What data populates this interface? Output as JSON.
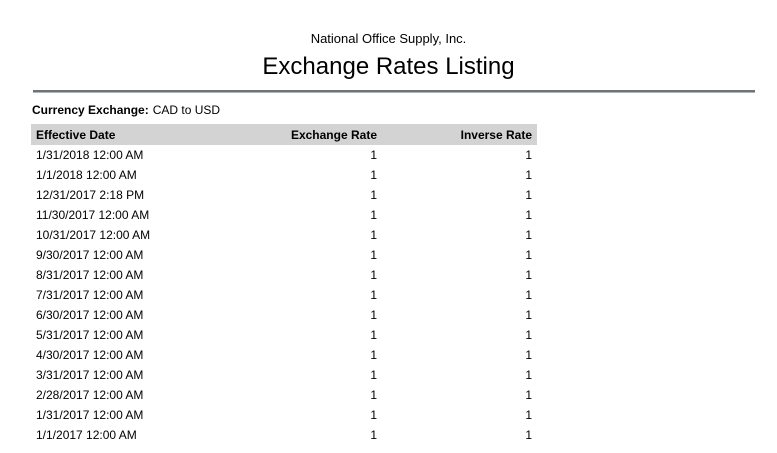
{
  "report": {
    "company": "National Office Supply, Inc.",
    "title": "Exchange Rates Listing",
    "filter_label": "Currency Exchange:",
    "filter_value": "CAD to USD"
  },
  "table": {
    "columns": [
      "Effective Date",
      "Exchange Rate",
      "Inverse Rate"
    ],
    "rows": [
      {
        "effective_date": "1/31/2018 12:00 AM",
        "exchange_rate": "1",
        "inverse_rate": "1"
      },
      {
        "effective_date": "1/1/2018 12:00 AM",
        "exchange_rate": "1",
        "inverse_rate": "1"
      },
      {
        "effective_date": "12/31/2017 2:18 PM",
        "exchange_rate": "1",
        "inverse_rate": "1"
      },
      {
        "effective_date": "11/30/2017 12:00 AM",
        "exchange_rate": "1",
        "inverse_rate": "1"
      },
      {
        "effective_date": "10/31/2017 12:00 AM",
        "exchange_rate": "1",
        "inverse_rate": "1"
      },
      {
        "effective_date": "9/30/2017 12:00 AM",
        "exchange_rate": "1",
        "inverse_rate": "1"
      },
      {
        "effective_date": "8/31/2017 12:00 AM",
        "exchange_rate": "1",
        "inverse_rate": "1"
      },
      {
        "effective_date": "7/31/2017 12:00 AM",
        "exchange_rate": "1",
        "inverse_rate": "1"
      },
      {
        "effective_date": "6/30/2017 12:00 AM",
        "exchange_rate": "1",
        "inverse_rate": "1"
      },
      {
        "effective_date": "5/31/2017 12:00 AM",
        "exchange_rate": "1",
        "inverse_rate": "1"
      },
      {
        "effective_date": "4/30/2017 12:00 AM",
        "exchange_rate": "1",
        "inverse_rate": "1"
      },
      {
        "effective_date": "3/31/2017 12:00 AM",
        "exchange_rate": "1",
        "inverse_rate": "1"
      },
      {
        "effective_date": "2/28/2017 12:00 AM",
        "exchange_rate": "1",
        "inverse_rate": "1"
      },
      {
        "effective_date": "1/31/2017 12:00 AM",
        "exchange_rate": "1",
        "inverse_rate": "1"
      },
      {
        "effective_date": "1/1/2017 12:00 AM",
        "exchange_rate": "1",
        "inverse_rate": "1"
      }
    ]
  },
  "colors": {
    "table_header_bg": "#d3d3d3",
    "rule_top": "#6f7276",
    "rule_bottom": "#b1b4b6",
    "text": "#000000",
    "page_bg": "#ffffff"
  }
}
